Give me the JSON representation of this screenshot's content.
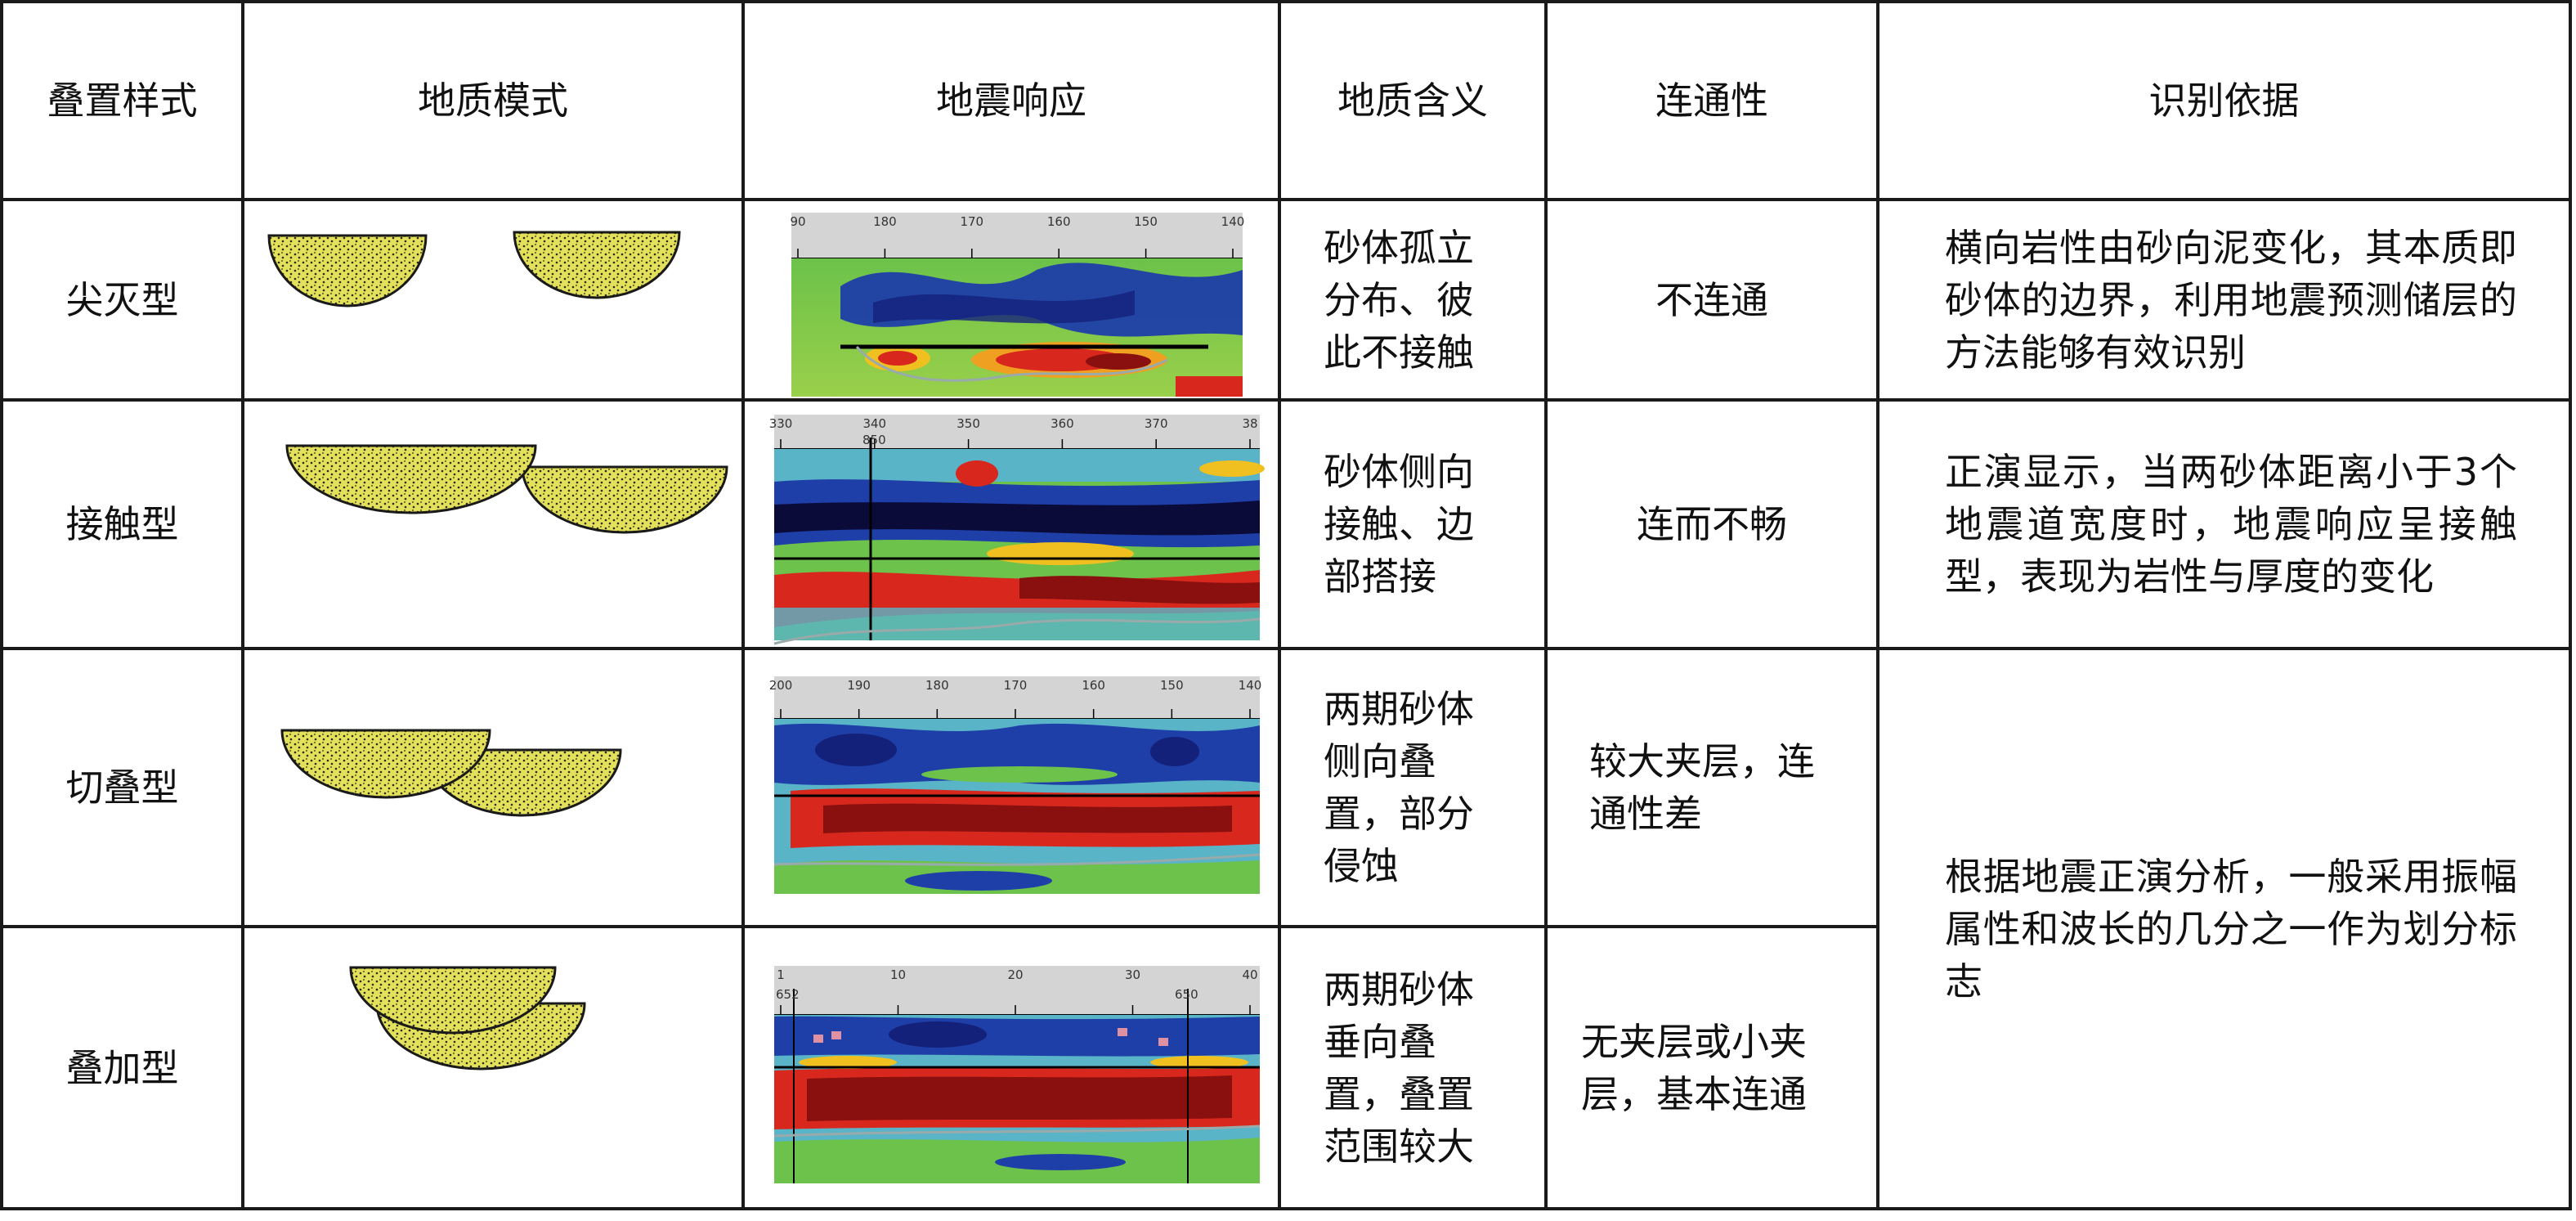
{
  "headers": [
    "叠置样式",
    "地质模式",
    "地震响应",
    "地质含义",
    "连通性",
    "识别依据"
  ],
  "rows": [
    {
      "style": "尖灭型",
      "meaning": "砂体孤立分布、彼此不接触",
      "connectivity": "不连通",
      "basis": "横向岩性由砂向泥变化，其本质即砂体的边界，利用地震预测储层的方法能够有效识别",
      "ticks": [
        "90",
        "180",
        "170",
        "160",
        "150",
        "140"
      ]
    },
    {
      "style": "接触型",
      "meaning": "砂体侧向接触、边部搭接",
      "connectivity": "连而不畅",
      "basis": "正演显示，当两砂体距离小于3个地震道宽度时，地震响应呈接触型，表现为岩性与厚度的变化",
      "ticks": [
        "330",
        "340",
        "350",
        "360",
        "370",
        "38"
      ],
      "marker": "850"
    },
    {
      "style": "切叠型",
      "meaning": "两期砂体侧向叠置，部分侵蚀",
      "connectivity": "较大夹层，连通性差",
      "ticks": [
        "200",
        "190",
        "180",
        "170",
        "160",
        "150",
        "140"
      ]
    },
    {
      "style": "叠加型",
      "meaning": "两期砂体垂向叠置，叠置范围较大",
      "connectivity": "无夹层或小夹层，基本连通",
      "ticks": [
        "1",
        "10",
        "20",
        "30",
        "40"
      ],
      "marker_left": "652",
      "marker_right": "650"
    }
  ],
  "shared_basis": "根据地震正演分析，一般采用振幅属性和波长的几分之一作为划分标志",
  "colors": {
    "sand_fill": "#e3e05c",
    "border": "#1a1a1a",
    "seismic_blue": "#1e3ea8",
    "seismic_red": "#d8281e",
    "seismic_green": "#6cc24a"
  }
}
